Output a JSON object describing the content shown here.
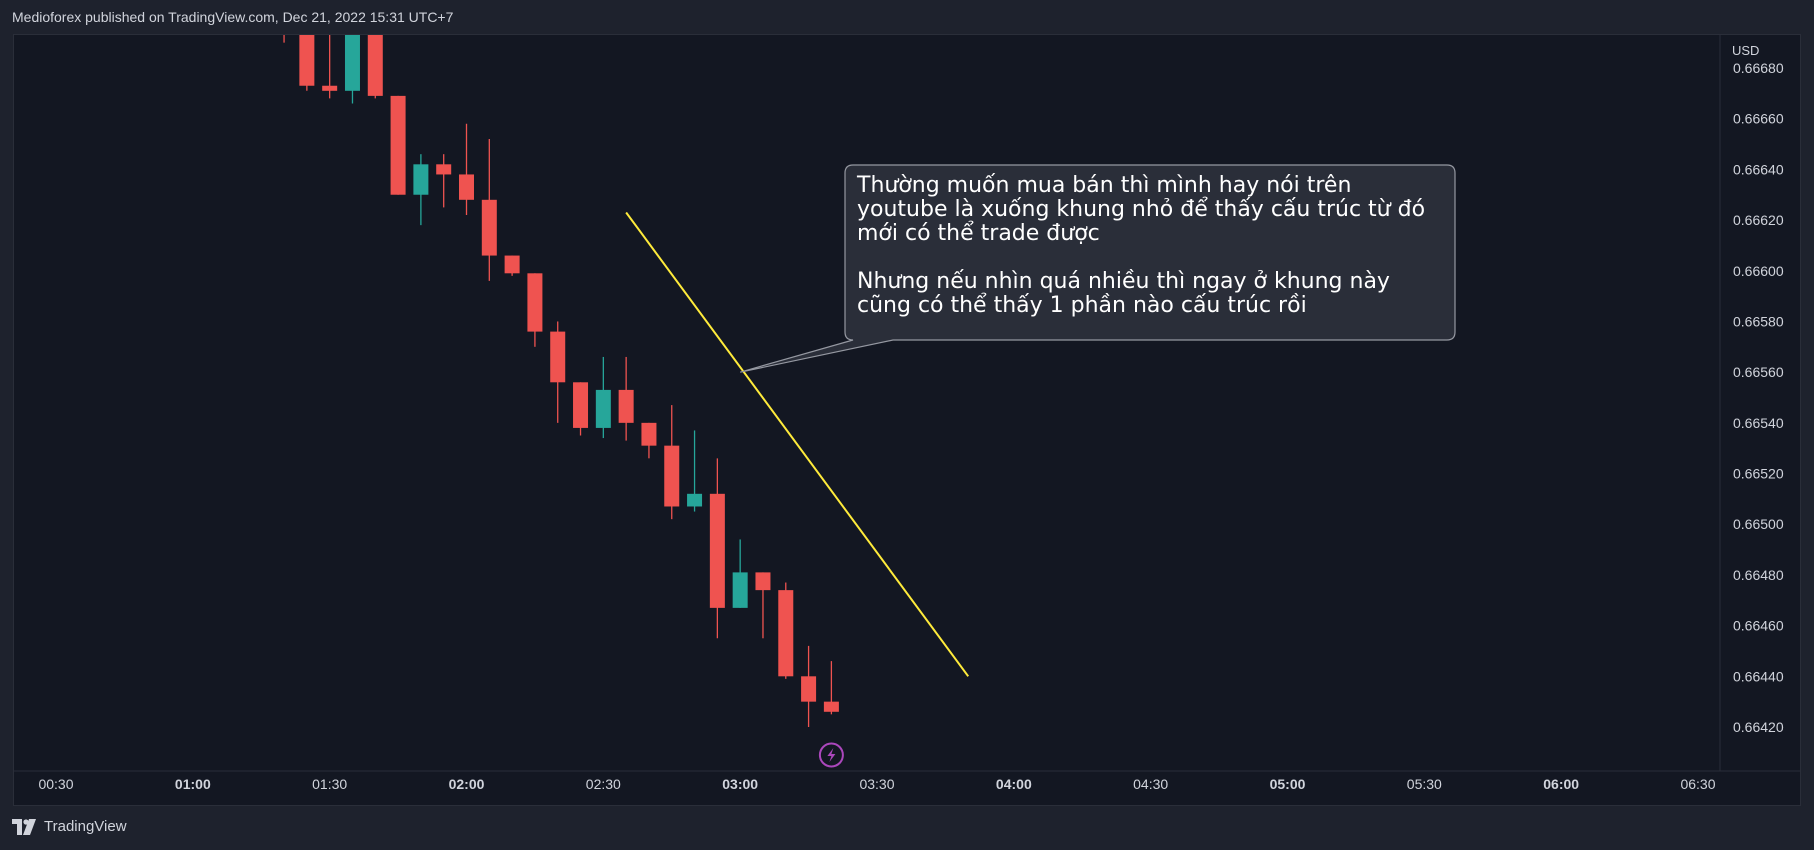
{
  "header": {
    "publisher_text": "Medioforex published on TradingView.com, Dec 21, 2022 15:31 UTC+7"
  },
  "footer": {
    "brand": "TradingView"
  },
  "annotation": {
    "text": "Thường muốn mua bán thì mình hay nói trên\nyoutube là xuống khung nhỏ để thấy cấu trúc từ đó\nmới có thể trade được\n\nNhưng nếu nhìn quá nhiều thì ngay ở khung này\ncũng có thể thấy 1 phần nào cấu trúc rồi"
  },
  "colors": {
    "up": "#26a69a",
    "down": "#ef5350",
    "trendline": "#ffeb3b",
    "background": "#131722",
    "axis_text": "#d1d4dc",
    "event_icon": "#ab47bc"
  },
  "icons": {
    "event_marker": "lightning-bolt-icon",
    "logo": "tradingview-logo-icon"
  },
  "chart_data": {
    "type": "candlestick",
    "currency_label": "USD",
    "y_ticks": [
      "0.66680",
      "0.66660",
      "0.66640",
      "0.66620",
      "0.66600",
      "0.66580",
      "0.66560",
      "0.66540",
      "0.66520",
      "0.66500",
      "0.66480",
      "0.66460",
      "0.66440",
      "0.66420"
    ],
    "x_ticks": [
      {
        "label": "00:30",
        "bold": false
      },
      {
        "label": "01:00",
        "bold": true
      },
      {
        "label": "01:30",
        "bold": false
      },
      {
        "label": "02:00",
        "bold": true
      },
      {
        "label": "02:30",
        "bold": false
      },
      {
        "label": "03:00",
        "bold": true
      },
      {
        "label": "03:30",
        "bold": false
      },
      {
        "label": "04:00",
        "bold": true
      },
      {
        "label": "04:30",
        "bold": false
      },
      {
        "label": "05:00",
        "bold": true
      },
      {
        "label": "05:30",
        "bold": false
      },
      {
        "label": "06:00",
        "bold": true
      },
      {
        "label": "06:30",
        "bold": false
      }
    ],
    "candles": [
      {
        "time": "01:20",
        "open": 0.6671,
        "high": 0.6673,
        "low": 0.6669,
        "close": 0.667
      },
      {
        "time": "01:25",
        "open": 0.6671,
        "high": 0.6673,
        "low": 0.66671,
        "close": 0.66673
      },
      {
        "time": "01:30",
        "open": 0.66673,
        "high": 0.6673,
        "low": 0.66668,
        "close": 0.66671
      },
      {
        "time": "01:35",
        "open": 0.66671,
        "high": 0.6673,
        "low": 0.66666,
        "close": 0.6671
      },
      {
        "time": "01:40",
        "open": 0.6671,
        "high": 0.6673,
        "low": 0.66668,
        "close": 0.66669
      },
      {
        "time": "01:45",
        "open": 0.66669,
        "high": 0.66669,
        "low": 0.6663,
        "close": 0.6663
      },
      {
        "time": "01:50",
        "open": 0.6663,
        "high": 0.66646,
        "low": 0.66618,
        "close": 0.66642
      },
      {
        "time": "01:55",
        "open": 0.66642,
        "high": 0.66646,
        "low": 0.66625,
        "close": 0.66638
      },
      {
        "time": "02:00",
        "open": 0.66638,
        "high": 0.66658,
        "low": 0.66622,
        "close": 0.66628
      },
      {
        "time": "02:05",
        "open": 0.66628,
        "high": 0.66652,
        "low": 0.66596,
        "close": 0.66606
      },
      {
        "time": "02:10",
        "open": 0.66606,
        "high": 0.66606,
        "low": 0.66598,
        "close": 0.66599
      },
      {
        "time": "02:15",
        "open": 0.66599,
        "high": 0.66599,
        "low": 0.6657,
        "close": 0.66576
      },
      {
        "time": "02:20",
        "open": 0.66576,
        "high": 0.6658,
        "low": 0.6654,
        "close": 0.66556
      },
      {
        "time": "02:25",
        "open": 0.66556,
        "high": 0.66556,
        "low": 0.66535,
        "close": 0.66538
      },
      {
        "time": "02:30",
        "open": 0.66538,
        "high": 0.66566,
        "low": 0.66534,
        "close": 0.66553
      },
      {
        "time": "02:35",
        "open": 0.66553,
        "high": 0.66566,
        "low": 0.66533,
        "close": 0.6654
      },
      {
        "time": "02:40",
        "open": 0.6654,
        "high": 0.6654,
        "low": 0.66526,
        "close": 0.66531
      },
      {
        "time": "02:45",
        "open": 0.66531,
        "high": 0.66547,
        "low": 0.66502,
        "close": 0.66507
      },
      {
        "time": "02:50",
        "open": 0.66507,
        "high": 0.66537,
        "low": 0.66505,
        "close": 0.66512
      },
      {
        "time": "02:55",
        "open": 0.66512,
        "high": 0.66526,
        "low": 0.66455,
        "close": 0.66467
      },
      {
        "time": "03:00",
        "open": 0.66467,
        "high": 0.66494,
        "low": 0.66467,
        "close": 0.66481
      },
      {
        "time": "03:05",
        "open": 0.66481,
        "high": 0.66481,
        "low": 0.66455,
        "close": 0.66474
      },
      {
        "time": "03:10",
        "open": 0.66474,
        "high": 0.66477,
        "low": 0.66439,
        "close": 0.6644
      },
      {
        "time": "03:15",
        "open": 0.6644,
        "high": 0.66452,
        "low": 0.6642,
        "close": 0.6643
      },
      {
        "time": "03:20",
        "open": 0.6643,
        "high": 0.66446,
        "low": 0.66425,
        "close": 0.66426
      }
    ],
    "trendline": {
      "start": {
        "time": "02:35",
        "price": 0.66623
      },
      "end": {
        "time": "03:50",
        "price": 0.6644
      }
    },
    "callout_anchor": {
      "time": "03:00",
      "price": 0.6656
    },
    "event_marker_time": "03:20"
  }
}
